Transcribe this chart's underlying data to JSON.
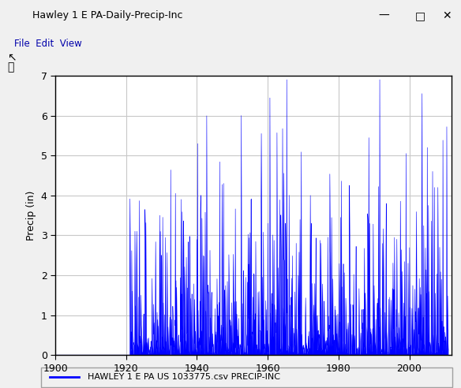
{
  "ylabel": "Precip (in)",
  "xlim": [
    1900,
    2012
  ],
  "ylim": [
    0,
    7
  ],
  "xticks": [
    1900,
    1920,
    1940,
    1960,
    1980,
    2000
  ],
  "yticks": [
    0,
    1,
    2,
    3,
    4,
    5,
    6,
    7
  ],
  "data_start_year": 1921,
  "data_end_year": 2010,
  "line_color": "#0000FF",
  "fill_color": "#0000FF",
  "bg_color": "#FFFFFF",
  "window_bg": "#F0F0F0",
  "grid_color": "#C8C8C8",
  "legend_label": "HAWLEY 1 E PA US 1033775.csv PRECIP-INC",
  "seed": 42,
  "precip_prob": 0.55,
  "base_mean": 1.3,
  "base_scale": 0.5,
  "spike_prob": 0.03,
  "spike_scale": 1.2
}
